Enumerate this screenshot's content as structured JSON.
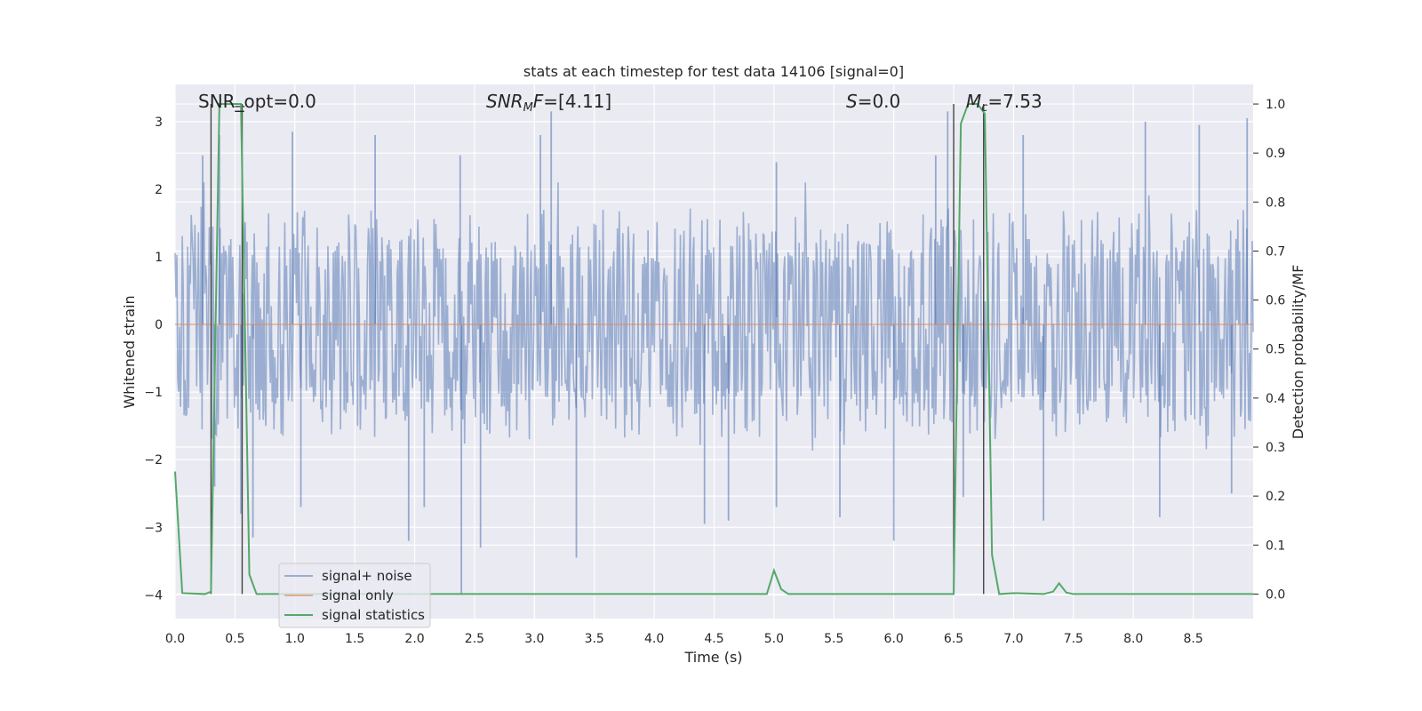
{
  "chart_data": {
    "type": "line",
    "title": "stats at each timestep for test data 14106 [signal=0]",
    "xlabel": "Time (s)",
    "ylabel_left": "Whitened strain",
    "ylabel_right": "Detection probability/MF",
    "xlim": [
      0.0,
      9.0
    ],
    "ylim_left": [
      -4.35,
      3.55
    ],
    "ylim_right": [
      -0.05,
      1.04
    ],
    "x_ticks": [
      "0.0",
      "0.5",
      "1.0",
      "1.5",
      "2.0",
      "2.5",
      "3.0",
      "3.5",
      "4.0",
      "4.5",
      "5.0",
      "5.5",
      "6.0",
      "6.5",
      "7.0",
      "7.5",
      "8.0",
      "8.5"
    ],
    "y_ticks_left": [
      "3",
      "2",
      "1",
      "0",
      "−1",
      "−2",
      "−3",
      "−4"
    ],
    "y_ticks_right": [
      "1.0",
      "0.9",
      "0.8",
      "0.7",
      "0.6",
      "0.5",
      "0.4",
      "0.3",
      "0.2",
      "0.1",
      "0.0"
    ],
    "grid": true,
    "legend_position": "lower-left",
    "annotations": {
      "snr_opt": "SNR_opt=0.0",
      "snr_mf": "=[4.11]",
      "s": "=0.0",
      "mc": "=7.53"
    },
    "series": [
      {
        "name": "signal+ noise",
        "color": "#4c72b0",
        "description_values": "dense whitened noise, mostly within [-1.7, 1.7], occasional spikes to about +3.2 and -4.0",
        "dense_range": [
          -1.7,
          1.7
        ],
        "peaks": [
          [
            0.23,
            2.5
          ],
          [
            0.37,
            2.8
          ],
          [
            0.98,
            2.85
          ],
          [
            1.67,
            2.8
          ],
          [
            2.38,
            2.5
          ],
          [
            3.14,
            3.15
          ],
          [
            3.05,
            2.8
          ],
          [
            5.02,
            2.4
          ],
          [
            6.35,
            2.5
          ],
          [
            6.45,
            3.15
          ],
          [
            7.08,
            2.8
          ],
          [
            8.1,
            3.0
          ],
          [
            8.55,
            2.95
          ],
          [
            8.95,
            3.05
          ],
          [
            0.33,
            -2.4
          ],
          [
            0.55,
            -2.8
          ],
          [
            0.65,
            -3.15
          ],
          [
            1.05,
            -2.7
          ],
          [
            1.95,
            -3.2
          ],
          [
            2.08,
            -2.7
          ],
          [
            2.39,
            -4.0
          ],
          [
            2.55,
            -3.3
          ],
          [
            3.35,
            -3.45
          ],
          [
            4.42,
            -2.95
          ],
          [
            4.62,
            -2.9
          ],
          [
            5.02,
            -2.7
          ],
          [
            5.55,
            -2.85
          ],
          [
            6.0,
            -3.2
          ],
          [
            6.58,
            -2.55
          ],
          [
            7.25,
            -2.9
          ],
          [
            8.22,
            -2.85
          ],
          [
            8.82,
            -2.5
          ]
        ]
      },
      {
        "name": "signal only",
        "color": "#dd8452",
        "x": [
          0.0,
          9.0
        ],
        "y": [
          0.0,
          0.0
        ]
      },
      {
        "name": "signal statistics",
        "color": "#55a868",
        "axis": "right",
        "x": [
          0.0,
          0.06,
          0.25,
          0.3,
          0.37,
          0.5,
          0.55,
          0.62,
          0.68,
          1.0,
          4.94,
          5.0,
          5.06,
          5.12,
          5.2,
          6.5,
          6.56,
          6.62,
          6.7,
          6.76,
          6.82,
          6.88,
          7.0,
          7.25,
          7.33,
          7.38,
          7.44,
          7.5,
          9.0
        ],
        "y": [
          0.25,
          0.002,
          0.0,
          0.005,
          1.0,
          1.0,
          1.0,
          0.04,
          0.0,
          0.0,
          0.0,
          0.048,
          0.01,
          0.0,
          0.0,
          0.0,
          0.96,
          1.0,
          1.0,
          0.98,
          0.08,
          0.0,
          0.002,
          0.0,
          0.005,
          0.022,
          0.003,
          0.0,
          0.0
        ]
      }
    ],
    "markers": {
      "vertical_lines_x": [
        0.3,
        0.56,
        6.5,
        6.75
      ],
      "line_top_y": 1.0,
      "line_bottom_y": 0.0
    }
  }
}
